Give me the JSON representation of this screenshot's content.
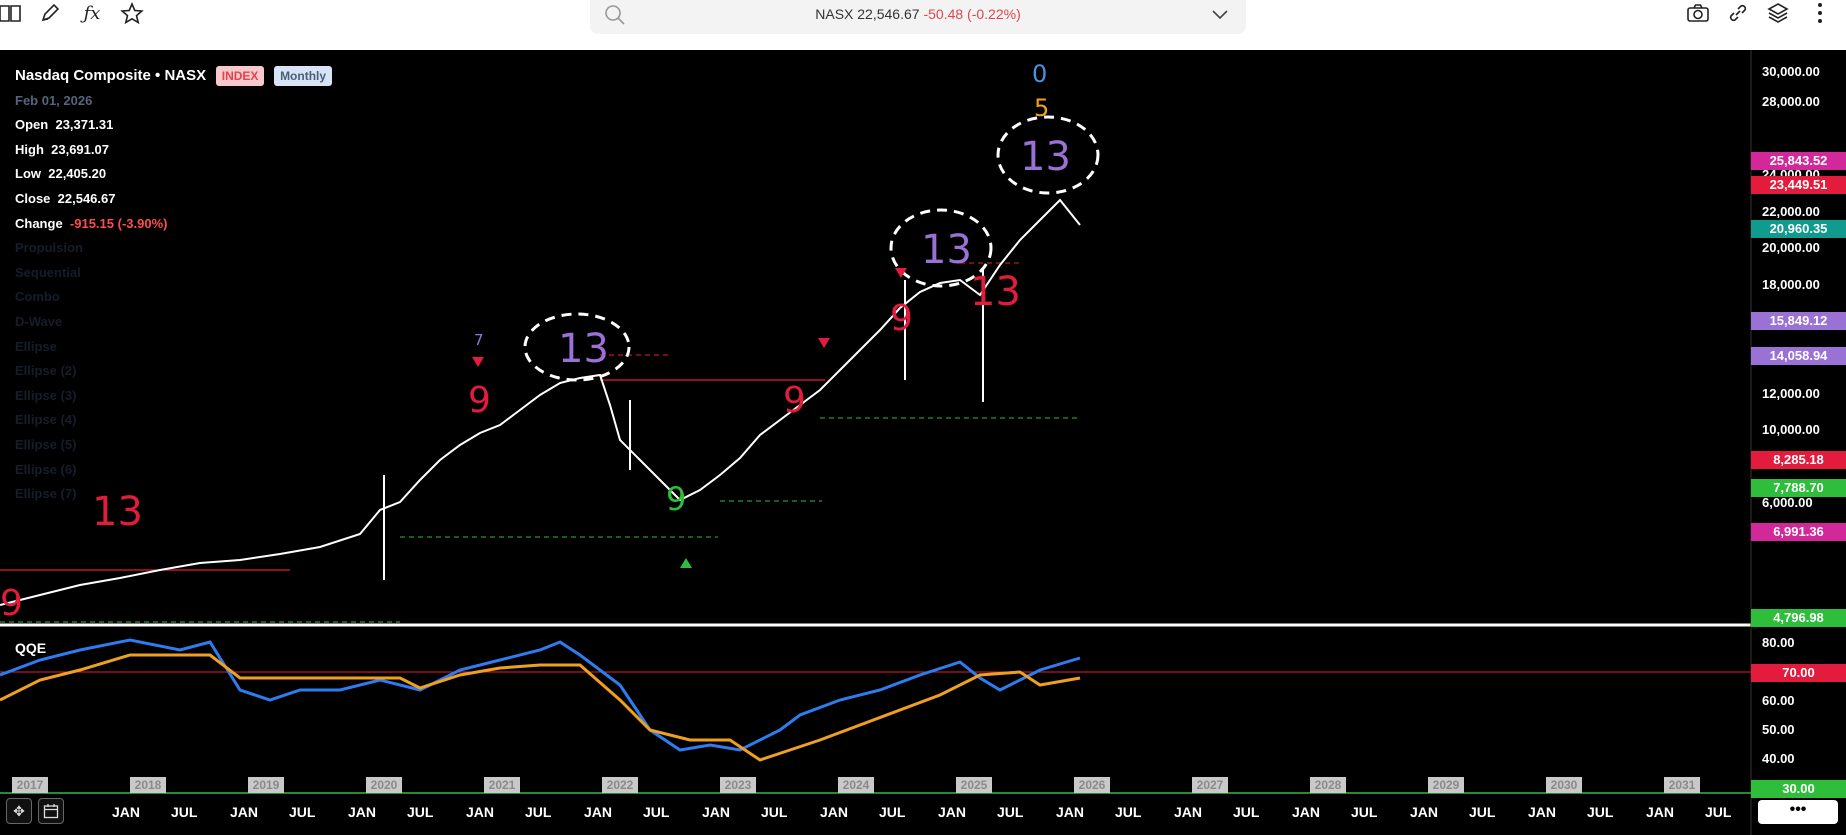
{
  "toolbar": {
    "icons": [
      "book-icon",
      "pencil-icon",
      "function-icon",
      "star-icon",
      "camera-icon",
      "link-icon",
      "layers-icon",
      "more-vertical-icon"
    ],
    "quote_symbol": "NASX",
    "quote_price": "22,546.67",
    "quote_change": "-50.48",
    "quote_pct": "(-0.22%)"
  },
  "legend": {
    "title": "Nasdaq Composite • NASX",
    "badge_index": "INDEX",
    "badge_period": "Monthly",
    "date": "Feb 01, 2026",
    "open_label": "Open",
    "open_value": "23,371.31",
    "high_label": "High",
    "high_value": "23,691.07",
    "low_label": "Low",
    "low_value": "22,405.20",
    "close_label": "Close",
    "close_value": "22,546.67",
    "change_label": "Change",
    "change_value": "-915.15 (-3.90%)",
    "indicators": [
      "Propulsion",
      "Sequential",
      "Combo",
      "D-Wave",
      "Ellipse",
      "Ellipse (2)",
      "Ellipse (3)",
      "Ellipse (4)",
      "Ellipse (5)",
      "Ellipse (6)",
      "Ellipse (7)"
    ]
  },
  "price_axis": [
    "30,000.00",
    "28,000.00",
    "24,000.00",
    "22,000.00",
    "20,000.00",
    "18,000.00",
    "12,000.00",
    "10,000.00",
    "6,000.00"
  ],
  "price_tags": [
    {
      "text": "25,843.52",
      "color": "#d3289a"
    },
    {
      "text": "23,449.51",
      "color": "#e31b3c"
    },
    {
      "text": "20,960.35",
      "color": "#119a8e"
    },
    {
      "text": "15,849.12",
      "color": "#9a72d6"
    },
    {
      "text": "14,058.94",
      "color": "#9a72d6"
    },
    {
      "text": "8,285.18",
      "color": "#e31b3c"
    },
    {
      "text": "7,788.70",
      "color": "#2fbe3c"
    },
    {
      "text": "6,991.36",
      "color": "#d3289a"
    },
    {
      "text": "4,796.98",
      "color": "#2fbe3c"
    }
  ],
  "qqe": {
    "title": "QQE",
    "axis": [
      "80.00",
      "60.00",
      "50.00",
      "40.00"
    ],
    "tags": [
      {
        "text": "70.00",
        "color": "#e31b3c"
      },
      {
        "text": "30.00",
        "color": "#2fbe3c"
      }
    ]
  },
  "years": [
    "2017",
    "2018",
    "2019",
    "2020",
    "2021",
    "2022",
    "2023",
    "2024",
    "2025",
    "2026",
    "2027",
    "2028",
    "2029",
    "2030",
    "2031"
  ],
  "months": [
    "JAN",
    "JUL",
    "JAN",
    "JUL",
    "JAN",
    "JUL",
    "JAN",
    "JUL",
    "JAN",
    "JUL",
    "JAN",
    "JUL",
    "JAN",
    "JUL",
    "JAN",
    "JUL",
    "JAN",
    "JUL",
    "JAN",
    "JUL",
    "JAN",
    "JUL",
    "JAN",
    "JUL",
    "JAN",
    "JUL",
    "JAN",
    "JUL"
  ],
  "annotations": [
    "13",
    "13",
    "13",
    "9",
    "9",
    "9",
    "13",
    "13",
    "0",
    "5"
  ],
  "more_label": "•••"
}
